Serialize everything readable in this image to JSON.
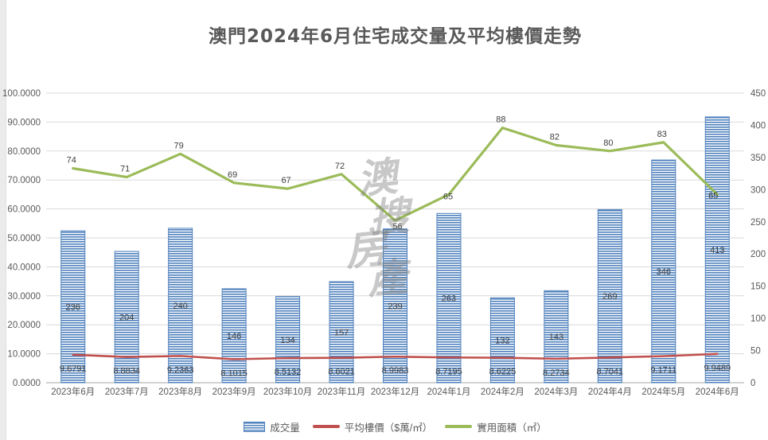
{
  "title": "澳門2024年6月住宅成交量及平均樓價走勢",
  "watermark": {
    "chars": [
      "澳",
      "搜",
      "房",
      "產"
    ]
  },
  "colors": {
    "bar": "#4f81bd",
    "price_line": "#c0504d",
    "area_line": "#9bbb59",
    "axis_text": "#595959",
    "data_label": "#3f3f3f",
    "gridline": "#d9d9d9",
    "axis_line": "#a6a6a6"
  },
  "chart_data": {
    "type": "combo-bar-line",
    "title": "澳門2024年6月住宅成交量及平均樓價走勢",
    "categories": [
      "2023年6月",
      "2023年7月",
      "2023年8月",
      "2023年9月",
      "2023年10月",
      "2023年11月",
      "2023年12月",
      "2024年1月",
      "2024年2月",
      "2024年3月",
      "2024年4月",
      "2024年5月",
      "2024年6月"
    ],
    "series": [
      {
        "name": "成交量",
        "type": "bar",
        "axis": "right",
        "color": "#4f81bd",
        "pattern": "horizontal-stripes",
        "values": [
          236,
          204,
          240,
          146,
          134,
          157,
          239,
          263,
          132,
          143,
          269,
          346,
          413
        ]
      },
      {
        "name": "平均樓價（$萬/㎡）",
        "type": "line",
        "axis": "left",
        "color": "#c0504d",
        "values": [
          9.6791,
          8.8834,
          9.2363,
          8.1015,
          8.5132,
          8.6021,
          8.9983,
          8.7195,
          8.6225,
          8.2734,
          8.7041,
          9.1711,
          9.9489
        ],
        "labels": [
          "9.6791",
          "8.8834",
          "9.2363",
          "8.1015",
          "8.5132",
          "8.6021",
          "8.9983",
          "8.7195",
          "8.6225",
          "8.2734",
          "8.7041",
          "9.1711",
          "9.9489"
        ]
      },
      {
        "name": "實用面積（㎡）",
        "type": "line",
        "axis": "left",
        "color": "#9bbb59",
        "values": [
          74,
          71,
          79,
          69,
          67,
          72,
          56,
          65,
          88,
          82,
          80,
          83,
          65
        ],
        "labels": [
          "74",
          "71",
          "79",
          "69",
          "67",
          "72",
          "56",
          "65",
          "88",
          "82",
          "80",
          "83",
          "65"
        ]
      }
    ],
    "left_axis": {
      "min": 0,
      "max": 100,
      "step": 10,
      "tick_labels": [
        "0.0000",
        "10.0000",
        "20.0000",
        "30.0000",
        "40.0000",
        "50.0000",
        "60.0000",
        "70.0000",
        "80.0000",
        "90.0000",
        "100.0000"
      ]
    },
    "right_axis": {
      "min": 0,
      "max": 450,
      "step": 50,
      "tick_labels": [
        "0",
        "50",
        "100",
        "150",
        "200",
        "250",
        "300",
        "350",
        "400",
        "450"
      ]
    },
    "grid": true,
    "legend_position": "bottom"
  }
}
